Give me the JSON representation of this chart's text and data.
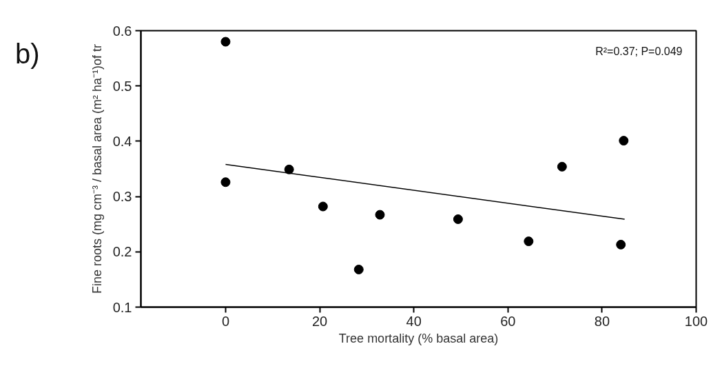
{
  "chart_data": {
    "type": "scatter",
    "xlabel": "Tree mortality (% basal area)",
    "ylabel": "Fine roots (mg cm⁻³ / basal area (m² ha⁻¹)of tr",
    "annotations": [
      "b)",
      "R²=0.37; P=0.049"
    ],
    "series": [
      {
        "color": "#000000",
        "marker": "circle",
        "x": [
          0,
          0,
          13.5,
          20.7,
          28.3,
          32.8,
          49.4,
          64.4,
          71.5,
          84.0,
          84.6
        ],
        "values": [
          0.58,
          0.326,
          0.349,
          0.282,
          0.168,
          0.267,
          0.259,
          0.219,
          0.354,
          0.213,
          0.401
        ]
      },
      {
        "type": "line",
        "color": "#000000",
        "x": [
          0,
          84.8
        ],
        "values": [
          0.358,
          0.259
        ]
      }
    ],
    "xlim": [
      -18,
      100
    ],
    "xticks": [
      0,
      20,
      40,
      60,
      80,
      100
    ],
    "ylim": [
      0.1,
      0.6
    ],
    "yticks": [
      0.1,
      0.2,
      0.3,
      0.4,
      0.5,
      0.6
    ],
    "grid": false
  }
}
